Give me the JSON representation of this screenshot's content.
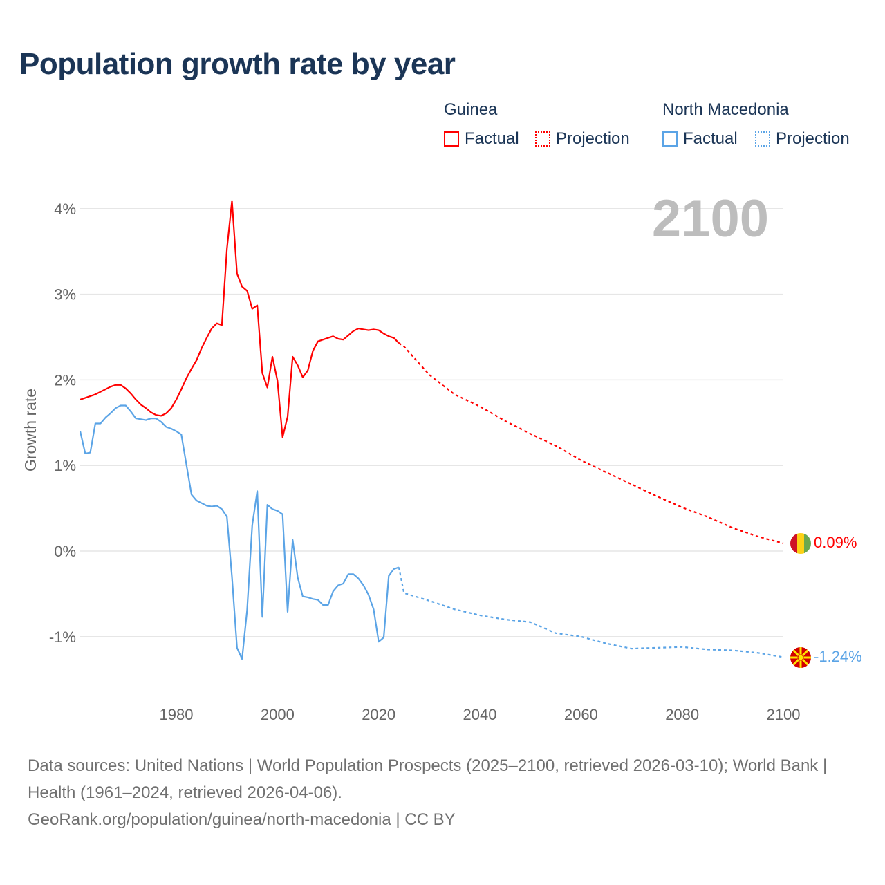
{
  "title": "Population growth rate by year",
  "legend": {
    "groups": [
      {
        "country": "Guinea",
        "color": "#ff0000",
        "factual_label": "Factual",
        "projection_label": "Projection"
      },
      {
        "country": "North Macedonia",
        "color": "#5ba4e6",
        "factual_label": "Factual",
        "projection_label": "Projection"
      }
    ]
  },
  "year_label": "2100",
  "end_labels": {
    "guinea": "0.09%",
    "north_macedonia": "-1.24%"
  },
  "source": {
    "line1": "Data sources: United Nations | World Population Prospects (2025–2100, retrieved 2026-03-10); World Bank | Health (1961–2024, retrieved 2026-04-06).",
    "line2": "GeoRank.org/population/guinea/north-macedonia | CC BY"
  },
  "chart_data": {
    "type": "line",
    "title": "Population growth rate by year",
    "xlabel": "",
    "ylabel": "Growth rate",
    "xlim": [
      1961,
      2100
    ],
    "ylim": [
      -1.5,
      4.2
    ],
    "x_ticks": [
      1980,
      2000,
      2020,
      2040,
      2060,
      2080,
      2100
    ],
    "x_tick_labels": [
      "1980",
      "2000",
      "2020",
      "2040",
      "2060",
      "2080",
      "2100"
    ],
    "y_ticks": [
      -1,
      0,
      1,
      2,
      3,
      4
    ],
    "y_tick_labels": [
      "-1%",
      "0%",
      "1%",
      "2%",
      "3%",
      "4%"
    ],
    "grid": true,
    "legend_position": "top-right",
    "series": [
      {
        "name": "Guinea Factual",
        "color": "#ff0000",
        "style": "solid",
        "x": [
          1961,
          1962,
          1963,
          1964,
          1965,
          1966,
          1967,
          1968,
          1969,
          1970,
          1971,
          1972,
          1973,
          1974,
          1975,
          1976,
          1977,
          1978,
          1979,
          1980,
          1981,
          1982,
          1983,
          1984,
          1985,
          1986,
          1987,
          1988,
          1989,
          1990,
          1991,
          1992,
          1993,
          1994,
          1995,
          1996,
          1997,
          1998,
          1999,
          2000,
          2001,
          2002,
          2003,
          2004,
          2005,
          2006,
          2007,
          2008,
          2009,
          2010,
          2011,
          2012,
          2013,
          2014,
          2015,
          2016,
          2017,
          2018,
          2019,
          2020,
          2021,
          2022,
          2023,
          2024
        ],
        "y": [
          1.77,
          1.79,
          1.81,
          1.83,
          1.86,
          1.89,
          1.92,
          1.94,
          1.94,
          1.9,
          1.84,
          1.77,
          1.71,
          1.67,
          1.62,
          1.59,
          1.58,
          1.61,
          1.67,
          1.77,
          1.89,
          2.02,
          2.13,
          2.23,
          2.37,
          2.49,
          2.6,
          2.66,
          2.64,
          3.53,
          4.09,
          3.24,
          3.09,
          3.04,
          2.83,
          2.87,
          2.08,
          1.91,
          2.27,
          1.99,
          1.33,
          1.57,
          2.27,
          2.17,
          2.03,
          2.11,
          2.34,
          2.45,
          2.47,
          2.49,
          2.51,
          2.48,
          2.47,
          2.52,
          2.57,
          2.6,
          2.59,
          2.58,
          2.59,
          2.58,
          2.54,
          2.51,
          2.49,
          2.43
        ]
      },
      {
        "name": "Guinea Projection",
        "color": "#ff0000",
        "style": "dotted",
        "x": [
          2024,
          2025,
          2030,
          2035,
          2040,
          2045,
          2050,
          2055,
          2060,
          2065,
          2070,
          2075,
          2080,
          2085,
          2090,
          2095,
          2100
        ],
        "y": [
          2.43,
          2.39,
          2.06,
          1.83,
          1.69,
          1.52,
          1.37,
          1.23,
          1.06,
          0.92,
          0.78,
          0.64,
          0.51,
          0.4,
          0.27,
          0.17,
          0.09
        ]
      },
      {
        "name": "North Macedonia Factual",
        "color": "#5ba4e6",
        "style": "solid",
        "x": [
          1961,
          1962,
          1963,
          1964,
          1965,
          1966,
          1967,
          1968,
          1969,
          1970,
          1971,
          1972,
          1973,
          1974,
          1975,
          1976,
          1977,
          1978,
          1979,
          1980,
          1981,
          1982,
          1983,
          1984,
          1985,
          1986,
          1987,
          1988,
          1989,
          1990,
          1991,
          1992,
          1993,
          1994,
          1995,
          1996,
          1997,
          1998,
          1999,
          2000,
          2001,
          2002,
          2003,
          2004,
          2005,
          2006,
          2007,
          2008,
          2009,
          2010,
          2011,
          2012,
          2013,
          2014,
          2015,
          2016,
          2017,
          2018,
          2019,
          2020,
          2021,
          2022,
          2023,
          2024
        ],
        "y": [
          1.4,
          1.14,
          1.15,
          1.49,
          1.49,
          1.56,
          1.61,
          1.67,
          1.7,
          1.7,
          1.63,
          1.55,
          1.54,
          1.53,
          1.55,
          1.55,
          1.51,
          1.45,
          1.43,
          1.4,
          1.36,
          1.01,
          0.66,
          0.59,
          0.56,
          0.53,
          0.52,
          0.53,
          0.49,
          0.4,
          -0.3,
          -1.13,
          -1.26,
          -0.69,
          0.3,
          0.7,
          -0.77,
          0.54,
          0.49,
          0.47,
          0.43,
          -0.71,
          0.13,
          -0.31,
          -0.53,
          -0.54,
          -0.56,
          -0.57,
          -0.63,
          -0.63,
          -0.47,
          -0.4,
          -0.38,
          -0.27,
          -0.27,
          -0.32,
          -0.4,
          -0.51,
          -0.68,
          -1.06,
          -1.01,
          -0.29,
          -0.21,
          -0.19
        ]
      },
      {
        "name": "North Macedonia Projection",
        "color": "#5ba4e6",
        "style": "dotted",
        "x": [
          2024,
          2025,
          2030,
          2035,
          2040,
          2045,
          2050,
          2055,
          2060,
          2065,
          2070,
          2075,
          2080,
          2085,
          2090,
          2095,
          2100
        ],
        "y": [
          -0.19,
          -0.49,
          -0.58,
          -0.68,
          -0.75,
          -0.8,
          -0.83,
          -0.96,
          -1.0,
          -1.08,
          -1.14,
          -1.13,
          -1.12,
          -1.15,
          -1.16,
          -1.19,
          -1.24
        ]
      }
    ]
  }
}
